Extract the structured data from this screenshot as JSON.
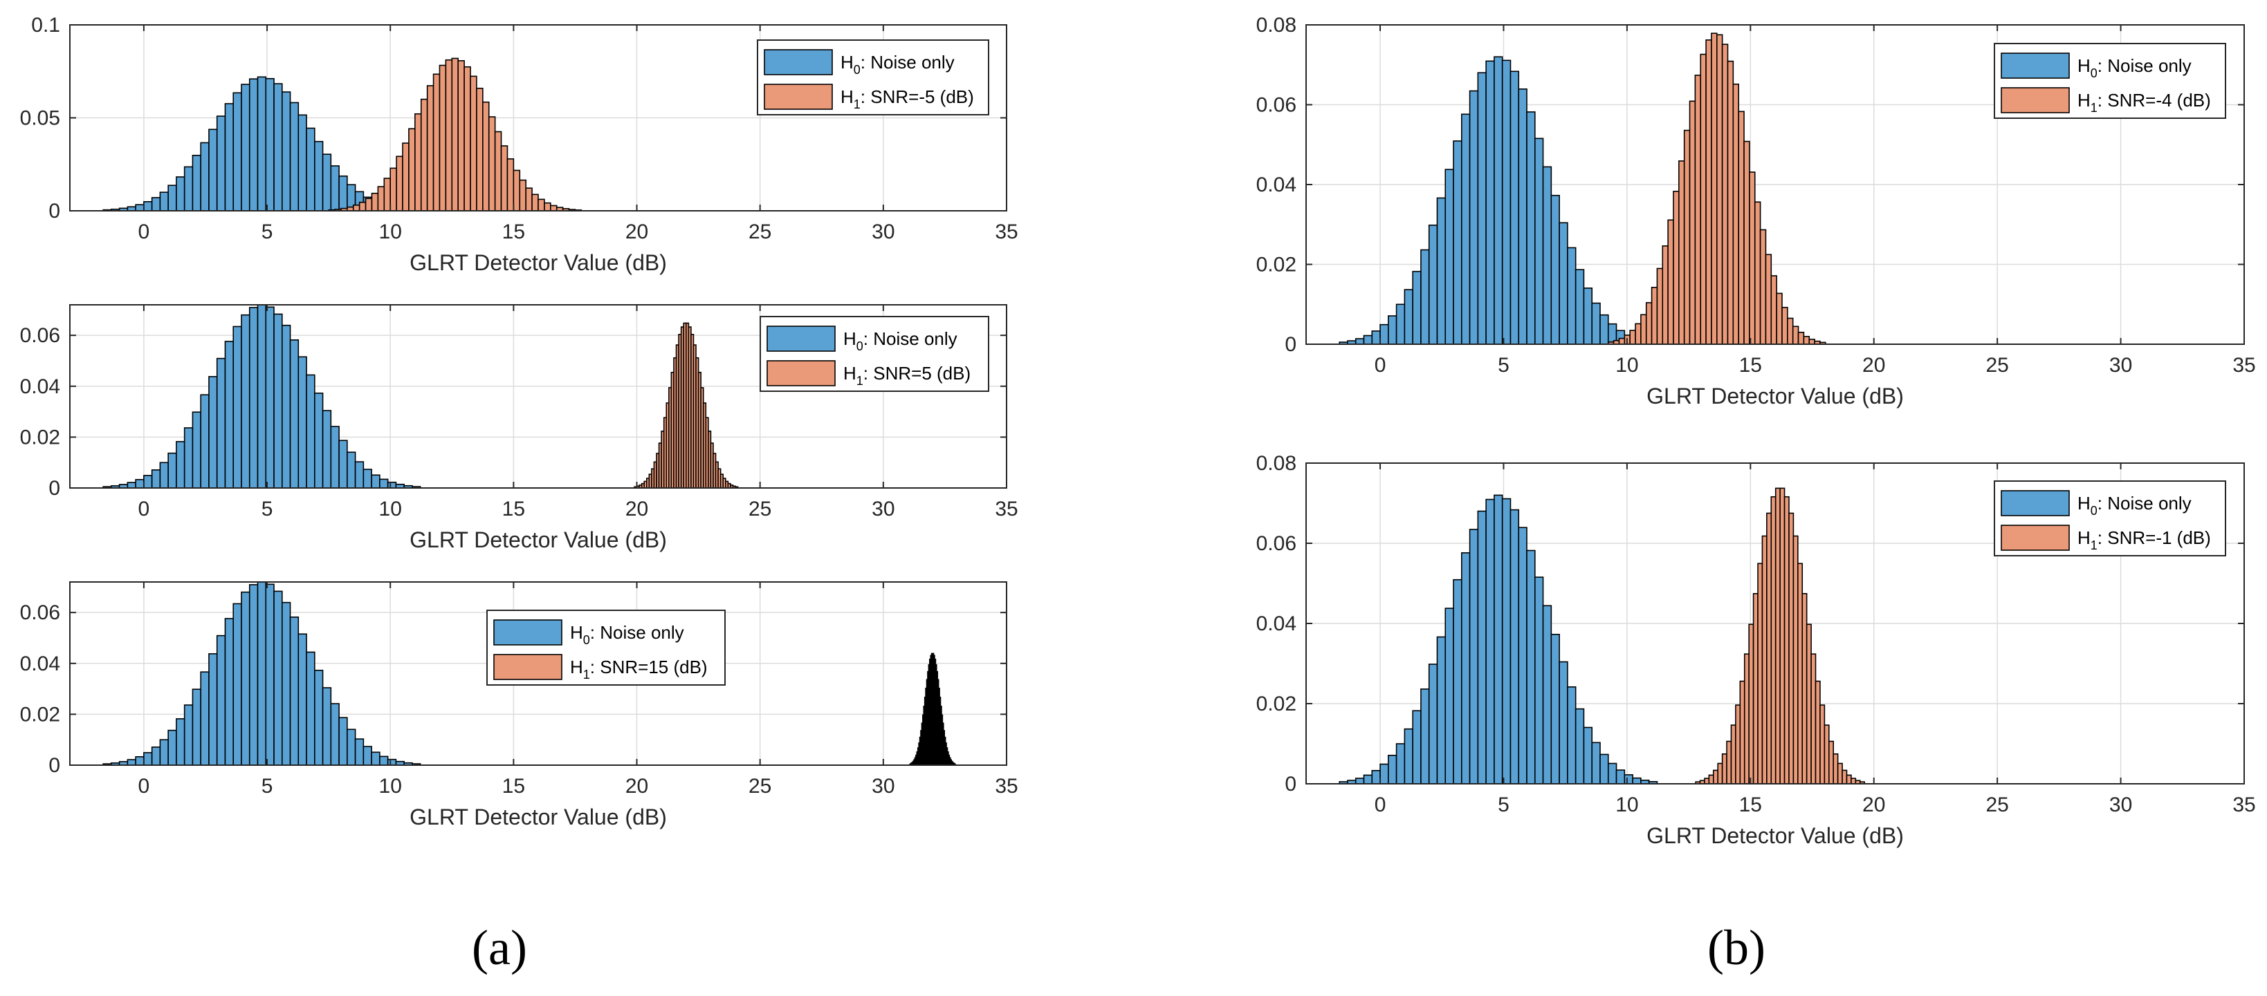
{
  "colors": {
    "h0": "#5aa2d4",
    "h1": "#ea9a78",
    "grid": "#dcdcdc",
    "axis": "#262626"
  },
  "captions": {
    "a": "(a)",
    "b": "(b)"
  },
  "chart_data": [
    {
      "id": "a1",
      "type": "histogram",
      "xlabel": "GLRT Detector Value (dB)",
      "xlim": [
        -3,
        35
      ],
      "ylim": [
        0,
        0.1
      ],
      "xticks": [
        0,
        5,
        10,
        15,
        20,
        25,
        30,
        35
      ],
      "yticks": [
        0,
        0.05,
        0.1
      ],
      "ytick_labels": [
        "0",
        "0.05",
        "0.1"
      ],
      "legend": {
        "h0_label": "H",
        "h0_sub": "0",
        "h0_text": ": Noise only",
        "h1_label": "H",
        "h1_sub": "1",
        "h1_text": ": SNR=-5 (dB)"
      },
      "series": [
        {
          "name": "H0: Noise only",
          "mean": 4.8,
          "std": 2.0,
          "peak": 0.072,
          "bin_width": 0.33,
          "color": "h0"
        },
        {
          "name": "H1: SNR=-5 (dB)",
          "mean": 12.6,
          "std": 1.55,
          "peak": 0.082,
          "bin_width": 0.25,
          "color": "h1"
        }
      ]
    },
    {
      "id": "a2",
      "type": "histogram",
      "xlabel": "GLRT Detector Value (dB)",
      "xlim": [
        -3,
        35
      ],
      "ylim": [
        0,
        0.072
      ],
      "xticks": [
        0,
        5,
        10,
        15,
        20,
        25,
        30,
        35
      ],
      "yticks": [
        0,
        0.02,
        0.04,
        0.06
      ],
      "ytick_labels": [
        "0",
        "0.02",
        "0.04",
        "0.06"
      ],
      "legend": {
        "h0_label": "H",
        "h0_sub": "0",
        "h0_text": ": Noise only",
        "h1_label": "H",
        "h1_sub": "1",
        "h1_text": ": SNR=5 (dB)"
      },
      "series": [
        {
          "name": "H0: Noise only",
          "mean": 4.8,
          "std": 2.0,
          "peak": 0.072,
          "bin_width": 0.33,
          "color": "h0"
        },
        {
          "name": "H1: SNR=5 (dB)",
          "mean": 22.0,
          "std": 0.65,
          "peak": 0.065,
          "bin_width": 0.1,
          "color": "h1"
        }
      ]
    },
    {
      "id": "a3",
      "type": "histogram",
      "xlabel": "GLRT Detector Value (dB)",
      "xlim": [
        -3,
        35
      ],
      "ylim": [
        0,
        0.072
      ],
      "xticks": [
        0,
        5,
        10,
        15,
        20,
        25,
        30,
        35
      ],
      "yticks": [
        0,
        0.02,
        0.04,
        0.06
      ],
      "ytick_labels": [
        "0",
        "0.02",
        "0.04",
        "0.06"
      ],
      "legend": {
        "h0_label": "H",
        "h0_sub": "0",
        "h0_text": ": Noise only",
        "h1_label": "H",
        "h1_sub": "1",
        "h1_text": ": SNR=15 (dB)"
      },
      "series": [
        {
          "name": "H0: Noise only",
          "mean": 4.8,
          "std": 2.0,
          "peak": 0.072,
          "bin_width": 0.33,
          "color": "h0"
        },
        {
          "name": "H1: SNR=15 (dB)",
          "mean": 32.0,
          "std": 0.3,
          "peak": 0.044,
          "bin_width": 0.04,
          "color": "h1"
        }
      ]
    },
    {
      "id": "b1",
      "type": "histogram",
      "xlabel": "GLRT Detector Value (dB)",
      "xlim": [
        -3,
        35
      ],
      "ylim": [
        0,
        0.08
      ],
      "xticks": [
        0,
        5,
        10,
        15,
        20,
        25,
        30,
        35
      ],
      "yticks": [
        0,
        0.02,
        0.04,
        0.06,
        0.08
      ],
      "ytick_labels": [
        "0",
        "0.02",
        "0.04",
        "0.06",
        "0.08"
      ],
      "legend": {
        "h0_label": "H",
        "h0_sub": "0",
        "h0_text": ": Noise only",
        "h1_label": "H",
        "h1_sub": "1",
        "h1_text": ": SNR=-4 (dB)"
      },
      "series": [
        {
          "name": "H0: Noise only",
          "mean": 4.8,
          "std": 2.0,
          "peak": 0.072,
          "bin_width": 0.33,
          "color": "h0"
        },
        {
          "name": "H1: SNR=-4 (dB)",
          "mean": 13.6,
          "std": 1.35,
          "peak": 0.078,
          "bin_width": 0.22,
          "color": "h1"
        }
      ]
    },
    {
      "id": "b2",
      "type": "histogram",
      "xlabel": "GLRT Detector Value (dB)",
      "xlim": [
        -3,
        35
      ],
      "ylim": [
        0,
        0.08
      ],
      "xticks": [
        0,
        5,
        10,
        15,
        20,
        25,
        30,
        35
      ],
      "yticks": [
        0,
        0.02,
        0.04,
        0.06,
        0.08
      ],
      "ytick_labels": [
        "0",
        "0.02",
        "0.04",
        "0.06",
        "0.08"
      ],
      "legend": {
        "h0_label": "H",
        "h0_sub": "0",
        "h0_text": ": Noise only",
        "h1_label": "H",
        "h1_sub": "1",
        "h1_text": ": SNR=-1 (dB)"
      },
      "series": [
        {
          "name": "H0: Noise only",
          "mean": 4.8,
          "std": 2.0,
          "peak": 0.072,
          "bin_width": 0.33,
          "color": "h0"
        },
        {
          "name": "H1: SNR=-1 (dB)",
          "mean": 16.2,
          "std": 1.05,
          "peak": 0.074,
          "bin_width": 0.18,
          "color": "h1"
        }
      ]
    }
  ]
}
